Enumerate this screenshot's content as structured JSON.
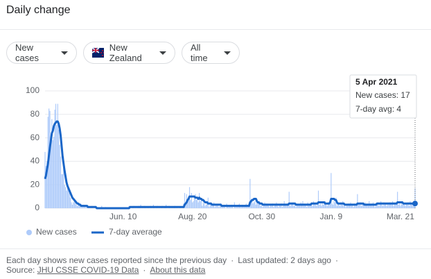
{
  "header": {
    "title": "Daily change"
  },
  "controls": [
    "New cases",
    "New Zealand",
    "All time"
  ],
  "footer": {
    "note": "Each day shows new cases reported since the previous day",
    "updated": "Last updated: 2 days ago",
    "source_label": "Source:",
    "source_link": "JHU CSSE COVID-19 Data",
    "about_link": "About this data"
  },
  "chart_data": {
    "type": "bar-line",
    "categories": [
      null,
      null,
      null,
      null,
      null,
      null,
      null,
      null,
      null,
      null,
      null,
      null,
      null,
      null,
      null,
      null,
      null,
      null,
      null,
      null,
      null,
      null,
      null,
      null,
      null,
      null,
      null,
      null,
      null,
      null,
      null,
      null,
      null,
      null,
      null,
      null,
      null,
      null,
      null,
      null,
      null,
      null,
      null,
      null,
      null,
      null,
      null,
      null,
      null,
      null,
      null,
      null,
      null,
      null,
      null,
      null,
      null,
      null,
      null,
      null,
      null,
      null,
      null,
      null,
      null,
      null,
      null,
      null,
      null,
      null,
      null,
      null,
      null,
      null,
      null,
      null,
      null,
      null,
      null,
      null,
      "Jun. 10",
      null,
      null,
      null,
      null,
      null,
      null,
      null,
      null,
      null,
      null,
      null,
      null,
      null,
      null,
      null,
      null,
      null,
      null,
      null,
      null,
      null,
      null,
      null,
      null,
      null,
      null,
      null,
      null,
      null,
      null,
      null,
      null,
      null,
      null,
      null,
      null,
      null,
      null,
      null,
      null,
      null,
      null,
      null,
      null,
      null,
      null,
      null,
      null,
      null,
      null,
      null,
      null,
      null,
      null,
      null,
      null,
      null,
      null,
      null,
      null,
      null,
      null,
      null,
      null,
      null,
      null,
      null,
      null,
      null,
      null,
      "Aug. 20",
      null,
      null,
      null,
      null,
      null,
      null,
      null,
      null,
      null,
      null,
      null,
      null,
      null,
      null,
      null,
      null,
      null,
      null,
      null,
      null,
      null,
      null,
      null,
      null,
      null,
      null,
      null,
      null,
      null,
      null,
      null,
      null,
      null,
      null,
      null,
      null,
      null,
      null,
      null,
      null,
      null,
      null,
      null,
      null,
      null,
      null,
      null,
      null,
      null,
      null,
      null,
      null,
      null,
      null,
      null,
      null,
      null,
      null,
      null,
      null,
      null,
      null,
      null,
      null,
      null,
      null,
      null,
      null,
      null,
      null,
      "Oct. 30",
      null,
      null,
      null,
      null,
      null,
      null,
      null,
      null,
      null,
      null,
      null,
      null,
      null,
      null,
      null,
      null,
      null,
      null,
      null,
      null,
      null,
      null,
      null,
      null,
      null,
      null,
      null,
      null,
      null,
      null,
      null,
      null,
      null,
      null,
      null,
      null,
      null,
      null,
      null,
      null,
      null,
      null,
      null,
      null,
      null,
      null,
      null,
      null,
      null,
      null,
      null,
      null,
      null,
      null,
      null,
      null,
      null,
      null,
      null,
      null,
      null,
      null,
      null,
      null,
      null,
      null,
      null,
      null,
      null,
      null,
      "Jan. 9",
      null,
      null,
      null,
      null,
      null,
      null,
      null,
      null,
      null,
      null,
      null,
      null,
      null,
      null,
      null,
      null,
      null,
      null,
      null,
      null,
      null,
      null,
      null,
      null,
      null,
      null,
      null,
      null,
      null,
      null,
      null,
      null,
      null,
      null,
      null,
      null,
      null,
      null,
      null,
      null,
      null,
      null,
      null,
      null,
      null,
      null,
      null,
      null,
      null,
      null,
      null,
      null,
      null,
      null,
      null,
      null,
      null,
      null,
      null,
      null,
      null,
      null,
      null,
      null,
      null,
      null,
      null,
      null,
      null,
      null,
      "Mar. 21",
      null,
      null,
      null,
      null,
      null,
      null,
      null,
      null,
      null,
      null,
      null,
      null,
      null,
      null,
      null
    ],
    "series": [
      {
        "name": "New cases",
        "color": "#aecbfa",
        "kind": "bar",
        "values": [
          48,
          36,
          40,
          78,
          85,
          83,
          63,
          76,
          58,
          61,
          84,
          89,
          71,
          89,
          67,
          54,
          44,
          29,
          29,
          44,
          20,
          18,
          15,
          17,
          19,
          13,
          9,
          5,
          3,
          5,
          6,
          5,
          3,
          2,
          3,
          2,
          2,
          1,
          1,
          3,
          2,
          2,
          1,
          1,
          2,
          0,
          1,
          0,
          2,
          0,
          0,
          1,
          0,
          0,
          1,
          0,
          0,
          0,
          2,
          0,
          0,
          0,
          1,
          0,
          0,
          0,
          0,
          0,
          0,
          0,
          0,
          0,
          0,
          0,
          0,
          0,
          0,
          0,
          0,
          0,
          0,
          0,
          0,
          0,
          0,
          0,
          2,
          1,
          0,
          1,
          1,
          2,
          0,
          1,
          0,
          1,
          2,
          1,
          3,
          0,
          1,
          0,
          2,
          1,
          0,
          1,
          1,
          0,
          2,
          1,
          0,
          3,
          1,
          0,
          1,
          2,
          0,
          1,
          0,
          1,
          2,
          0,
          1,
          1,
          3,
          0,
          0,
          2,
          1,
          0,
          1,
          0,
          1,
          2,
          0,
          1,
          0,
          0,
          1,
          1,
          0,
          1,
          4,
          13,
          5,
          12,
          6,
          9,
          18,
          7,
          13,
          5,
          6,
          9,
          12,
          7,
          9,
          5,
          13,
          6,
          7,
          2,
          5,
          4,
          2,
          3,
          6,
          9,
          1,
          5,
          3,
          2,
          4,
          5,
          1,
          3,
          2,
          3,
          1,
          2,
          4,
          2,
          1,
          3,
          3,
          0,
          4,
          2,
          1,
          2,
          1,
          3,
          2,
          0,
          5,
          1,
          2,
          1,
          3,
          4,
          2,
          1,
          3,
          2,
          1,
          2,
          4,
          1,
          3,
          2,
          25,
          7,
          8,
          4,
          5,
          6,
          3,
          8,
          5,
          4,
          3,
          2,
          4,
          1,
          3,
          5,
          2,
          4,
          3,
          2,
          1,
          3,
          2,
          4,
          1,
          2,
          3,
          5,
          2,
          1,
          3,
          2,
          4,
          1,
          2,
          6,
          3,
          2,
          4,
          3,
          14,
          2,
          3,
          4,
          5,
          2,
          3,
          1,
          4,
          2,
          3,
          2,
          5,
          3,
          6,
          2,
          4,
          3,
          1,
          5,
          2,
          4,
          3,
          5,
          2,
          6,
          4,
          3,
          2,
          4,
          15,
          3,
          4,
          2,
          5,
          3,
          4,
          6,
          3,
          2,
          4,
          5,
          7,
          30,
          4,
          3,
          6,
          5,
          9,
          2,
          3,
          4,
          2,
          5,
          3,
          6,
          2,
          4,
          1,
          3,
          2,
          4,
          3,
          5,
          2,
          3,
          1,
          4,
          2,
          3,
          12,
          4,
          3,
          5,
          2,
          4,
          3,
          2,
          5,
          3,
          4,
          2,
          6,
          3,
          4,
          2,
          5,
          3,
          1,
          4,
          3,
          5,
          2,
          4,
          6,
          3,
          2,
          5,
          3,
          4,
          2,
          4,
          3,
          5,
          4,
          3,
          6,
          2,
          4,
          3,
          5,
          14,
          3,
          4,
          2,
          5,
          3,
          4,
          3,
          2,
          4,
          3,
          5,
          2,
          6,
          3,
          4,
          2,
          3,
          17
        ]
      },
      {
        "name": "7-day average",
        "color": "#1a66c8",
        "kind": "line",
        "values": [
          25,
          28,
          33,
          38,
          45,
          52,
          58,
          64,
          66,
          70,
          72,
          73,
          74,
          74,
          72,
          68,
          62,
          53,
          44,
          38,
          32,
          27,
          22,
          19,
          17,
          15,
          13,
          11,
          9,
          8,
          7,
          6,
          5,
          4,
          4,
          3,
          3,
          2,
          2,
          2,
          2,
          2,
          2,
          2,
          1,
          1,
          1,
          1,
          1,
          1,
          1,
          1,
          1,
          0,
          0,
          0,
          0,
          0,
          0,
          0,
          0,
          0,
          0,
          0,
          0,
          0,
          0,
          0,
          0,
          0,
          0,
          0,
          0,
          0,
          0,
          0,
          0,
          0,
          0,
          0,
          0,
          0,
          0,
          0,
          0,
          0,
          0,
          1,
          1,
          1,
          1,
          1,
          1,
          1,
          1,
          1,
          1,
          1,
          1,
          1,
          1,
          1,
          1,
          1,
          1,
          1,
          1,
          1,
          1,
          1,
          1,
          1,
          1,
          1,
          1,
          1,
          1,
          1,
          1,
          1,
          1,
          1,
          1,
          1,
          1,
          1,
          1,
          1,
          1,
          1,
          1,
          1,
          1,
          1,
          1,
          1,
          1,
          1,
          1,
          1,
          1,
          1,
          1,
          3,
          4,
          5,
          7,
          8,
          10,
          10,
          10,
          10,
          10,
          10,
          9,
          9,
          9,
          8,
          9,
          8,
          8,
          7,
          7,
          6,
          5,
          5,
          5,
          4,
          4,
          4,
          4,
          3,
          3,
          3,
          3,
          3,
          3,
          3,
          3,
          3,
          3,
          2,
          2,
          2,
          2,
          2,
          2,
          2,
          2,
          2,
          2,
          2,
          2,
          2,
          2,
          2,
          2,
          2,
          2,
          2,
          2,
          2,
          2,
          2,
          2,
          2,
          2,
          2,
          2,
          2,
          5,
          6,
          7,
          7,
          8,
          8,
          8,
          6,
          5,
          5,
          4,
          4,
          4,
          3,
          3,
          3,
          3,
          3,
          3,
          3,
          3,
          3,
          3,
          3,
          3,
          3,
          3,
          3,
          3,
          3,
          3,
          3,
          3,
          3,
          3,
          3,
          3,
          3,
          3,
          3,
          4,
          4,
          4,
          4,
          4,
          4,
          4,
          3,
          3,
          3,
          3,
          3,
          3,
          3,
          3,
          3,
          3,
          3,
          3,
          3,
          3,
          3,
          3,
          4,
          4,
          4,
          4,
          4,
          4,
          4,
          5,
          5,
          5,
          5,
          5,
          5,
          5,
          4,
          4,
          4,
          4,
          4,
          5,
          8,
          8,
          8,
          8,
          7,
          7,
          5,
          4,
          4,
          4,
          4,
          4,
          4,
          4,
          3,
          3,
          3,
          3,
          3,
          3,
          3,
          3,
          3,
          3,
          3,
          3,
          3,
          4,
          4,
          4,
          4,
          4,
          4,
          4,
          3,
          3,
          3,
          3,
          3,
          3,
          3,
          3,
          3,
          3,
          3,
          3,
          3,
          4,
          4,
          4,
          4,
          4,
          4,
          4,
          4,
          4,
          4,
          4,
          4,
          4,
          4,
          4,
          4,
          4,
          4,
          4,
          4,
          4,
          5,
          5,
          5,
          5,
          5,
          5,
          4,
          4,
          4,
          4,
          4,
          4,
          4,
          4,
          4,
          4,
          4,
          4,
          4
        ]
      }
    ],
    "ylim": [
      0,
      100
    ],
    "yticks": [
      0,
      20,
      40,
      60,
      80,
      100
    ],
    "grid": true,
    "legend": "bottom-left",
    "tooltip": {
      "date": "5 Apr 2021",
      "labels": [
        "New cases:",
        "7-day avg:"
      ]
    }
  }
}
